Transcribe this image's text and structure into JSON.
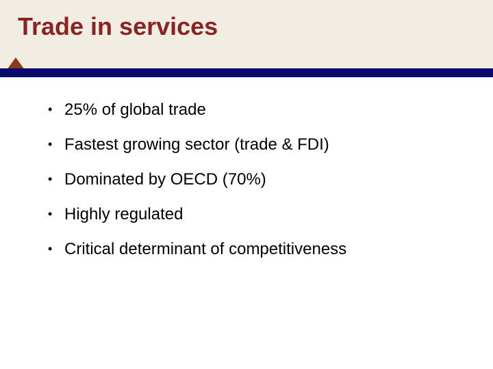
{
  "header": {
    "title": "Trade in services"
  },
  "bullets": [
    "25% of global trade",
    "Fastest growing sector (trade & FDI)",
    "Dominated by OECD (70%)",
    "Highly regulated",
    "Critical determinant of competitiveness"
  ]
}
